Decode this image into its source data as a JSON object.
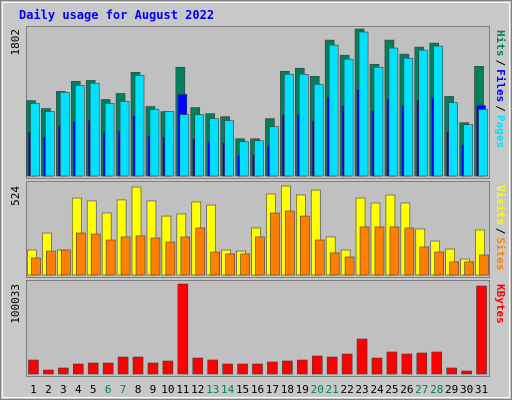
{
  "chart_data": [
    {
      "type": "bar",
      "title": "Daily usage for August 2022",
      "categories": [
        "1",
        "2",
        "3",
        "4",
        "5",
        "6",
        "7",
        "8",
        "9",
        "10",
        "11",
        "12",
        "13",
        "14",
        "15",
        "16",
        "17",
        "18",
        "19",
        "20",
        "21",
        "22",
        "23",
        "24",
        "25",
        "26",
        "27",
        "28",
        "29",
        "30",
        "31"
      ],
      "category_colors": [
        "#000000",
        "#000000",
        "#000000",
        "#000000",
        "#000000",
        "#00805c",
        "#00805c",
        "#000000",
        "#000000",
        "#000000",
        "#000000",
        "#000000",
        "#00805c",
        "#00805c",
        "#000000",
        "#000000",
        "#000000",
        "#000000",
        "#000000",
        "#00805c",
        "#00805c",
        "#000000",
        "#000000",
        "#000000",
        "#000000",
        "#000000",
        "#00805c",
        "#00805c",
        "#000000",
        "#000000",
        "#000000"
      ],
      "legend_separator": "/",
      "ylim": [
        0,
        1802
      ],
      "yticks": [
        1802
      ],
      "series": [
        {
          "name": "Hits",
          "color": "#00805c",
          "values": [
            925,
            827,
            1037,
            1160,
            1172,
            938,
            1012,
            1271,
            852,
            790,
            1333,
            839,
            765,
            728,
            457,
            457,
            704,
            1284,
            1321,
            1222,
            1666,
            1481,
            1802,
            1370,
            1666,
            1494,
            1580,
            1629,
            975,
            654,
            1345
          ]
        },
        {
          "name": "Files",
          "color": "#0000ff",
          "values": [
            533,
            474,
            614,
            667,
            682,
            533,
            548,
            740,
            489,
            474,
            1000,
            452,
            422,
            407,
            252,
            259,
            363,
            748,
            748,
            674,
            963,
            859,
            1059,
            800,
            941,
            866,
            926,
            955,
            541,
            378,
            864
          ]
        },
        {
          "name": "Pages",
          "color": "#00e0ff",
          "values": [
            889,
            790,
            1024,
            1111,
            1136,
            889,
            914,
            1234,
            815,
            790,
            753,
            753,
            704,
            679,
            420,
            432,
            605,
            1247,
            1247,
            1123,
            1605,
            1432,
            1765,
            1333,
            1568,
            1444,
            1543,
            1592,
            901,
            630,
            815
          ]
        }
      ]
    },
    {
      "type": "bar",
      "legend_separator": "/",
      "ylim": [
        0,
        524
      ],
      "yticks": [
        524
      ],
      "series": [
        {
          "name": "Visits",
          "color": "#ffff00",
          "values": [
            147,
            247,
            147,
            453,
            436,
            365,
            442,
            518,
            436,
            347,
            359,
            430,
            412,
            147,
            141,
            277,
            477,
            524,
            471,
            500,
            224,
            147,
            453,
            424,
            471,
            424,
            271,
            200,
            153,
            94,
            265
          ]
        },
        {
          "name": "Sites",
          "color": "#ff8000",
          "values": [
            100,
            141,
            147,
            247,
            241,
            206,
            224,
            230,
            218,
            194,
            224,
            277,
            135,
            124,
            124,
            224,
            365,
            377,
            347,
            206,
            130,
            106,
            283,
            283,
            283,
            277,
            165,
            135,
            77,
            77,
            118
          ]
        }
      ]
    },
    {
      "type": "bar",
      "ylim": [
        0,
        100033
      ],
      "yticks": [
        100033
      ],
      "series": [
        {
          "name": "KBytes",
          "color": "#ff0000",
          "values": [
            15560,
            4450,
            6670,
            11110,
            12220,
            12220,
            18890,
            18890,
            12220,
            14440,
            100033,
            17780,
            15560,
            11110,
            11110,
            11110,
            13340,
            14440,
            15560,
            20010,
            18890,
            22230,
            38900,
            17780,
            24450,
            22230,
            23340,
            24450,
            6670,
            3340,
            97800
          ]
        }
      ]
    }
  ]
}
